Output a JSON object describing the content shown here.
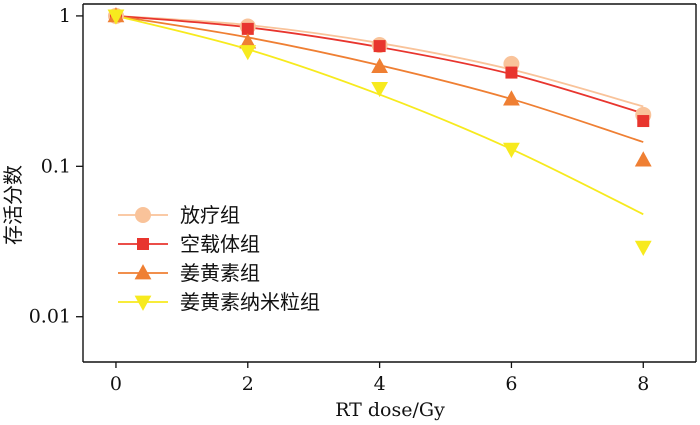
{
  "chart_data": {
    "type": "line",
    "xlabel": "RT dose/Gy",
    "ylabel": "存活分数",
    "xlim": [
      -0.5,
      8.8
    ],
    "ylim": [
      0.005,
      1.2
    ],
    "yscale": "log",
    "xticks": [
      0,
      2,
      4,
      6,
      8
    ],
    "yticks": [
      {
        "value": 1,
        "label": "1"
      },
      {
        "value": 0.1,
        "label": "0.1"
      },
      {
        "value": 0.01,
        "label": "0.01"
      }
    ],
    "grid": false,
    "legend_position": "bottom-left",
    "x": [
      0,
      2,
      4,
      6,
      8
    ],
    "series": [
      {
        "name": "放疗组",
        "marker": "circle",
        "color": "#F9C39A",
        "values": [
          1.0,
          0.85,
          0.64,
          0.48,
          0.22
        ],
        "fit": [
          [
            0,
            1.0
          ],
          [
            2,
            0.87
          ],
          [
            4,
            0.66
          ],
          [
            6,
            0.44
          ],
          [
            8,
            0.25
          ]
        ]
      },
      {
        "name": "空载体组",
        "marker": "square",
        "color": "#E8352E",
        "values": [
          1.0,
          0.82,
          0.63,
          0.42,
          0.2
        ],
        "fit": [
          [
            0,
            1.0
          ],
          [
            2,
            0.84
          ],
          [
            4,
            0.62
          ],
          [
            6,
            0.41
          ],
          [
            8,
            0.225
          ]
        ]
      },
      {
        "name": "姜黄素组",
        "marker": "triangle-up",
        "color": "#EF7F33",
        "values": [
          1.0,
          0.67,
          0.46,
          0.28,
          0.11
        ],
        "fit": [
          [
            0,
            1.0
          ],
          [
            2,
            0.72
          ],
          [
            4,
            0.47
          ],
          [
            6,
            0.28
          ],
          [
            8,
            0.145
          ]
        ]
      },
      {
        "name": "姜黄素纳米粒组",
        "marker": "triangle-down",
        "color": "#F7EA1E",
        "values": [
          1.0,
          0.58,
          0.33,
          0.13,
          0.029
        ],
        "fit": [
          [
            0,
            1.0
          ],
          [
            2,
            0.6
          ],
          [
            4,
            0.3
          ],
          [
            6,
            0.13
          ],
          [
            8,
            0.048
          ]
        ]
      }
    ]
  }
}
